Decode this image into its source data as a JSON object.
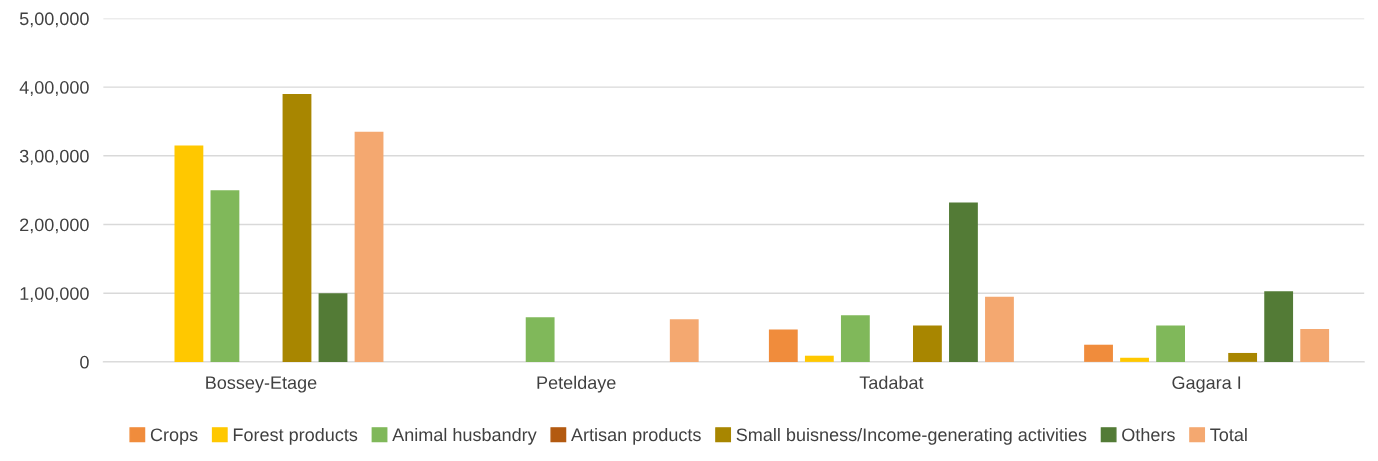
{
  "chart_data": {
    "type": "bar",
    "categories": [
      "Bossey-Etage",
      "Peteldaye",
      "Tadabat",
      "Gagara I"
    ],
    "series": [
      {
        "name": "Crops",
        "color": "#f08c3c",
        "values": [
          0,
          0,
          47000,
          25000
        ]
      },
      {
        "name": "Forest products",
        "color": "#ffc800",
        "values": [
          315000,
          0,
          9000,
          6000
        ]
      },
      {
        "name": "Animal husbandry",
        "color": "#80b85a",
        "values": [
          250000,
          65000,
          68000,
          53000
        ]
      },
      {
        "name": "Artisan products",
        "color": "#b35a10",
        "values": [
          0,
          0,
          0,
          0
        ]
      },
      {
        "name": "Small buisness/Income-generating activities",
        "color": "#a88600",
        "values": [
          390000,
          0,
          53000,
          13000
        ]
      },
      {
        "name": "Others",
        "color": "#537b36",
        "values": [
          100000,
          0,
          232000,
          103000
        ]
      },
      {
        "name": "Total",
        "color": "#f4a870",
        "values": [
          335000,
          62000,
          95000,
          48000
        ]
      }
    ],
    "ylim": [
      0,
      500000
    ],
    "yticks": [
      {
        "value": 0,
        "label": "0"
      },
      {
        "value": 100000,
        "label": "1,00,000"
      },
      {
        "value": 200000,
        "label": "2,00,000"
      },
      {
        "value": 300000,
        "label": "3,00,000"
      },
      {
        "value": 400000,
        "label": "4,00,000"
      },
      {
        "value": 500000,
        "label": "5,00,000"
      }
    ],
    "grid": "y",
    "legend": "bottom"
  }
}
